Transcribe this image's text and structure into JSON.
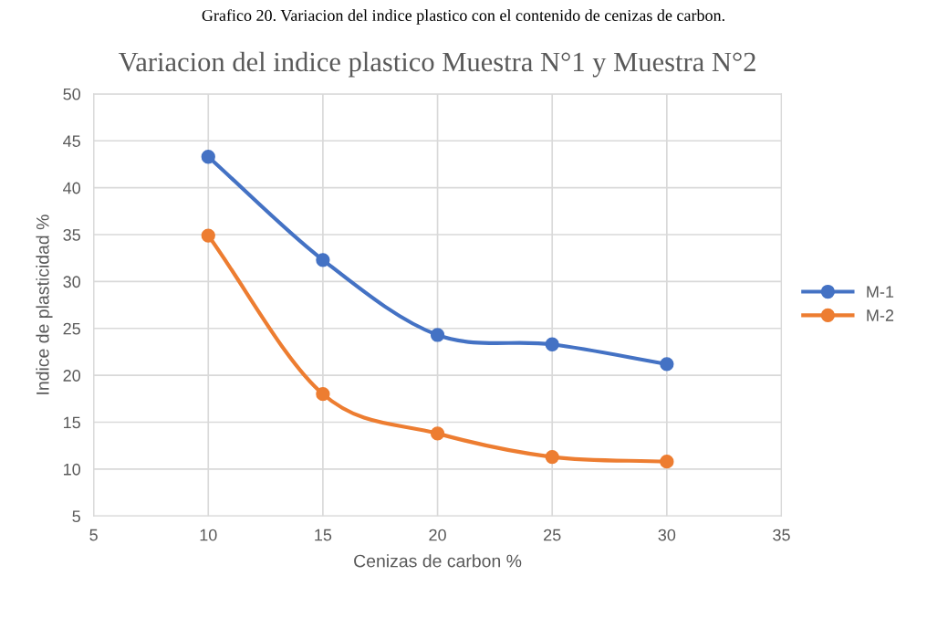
{
  "chart_data": {
    "type": "line",
    "title": "Variacion del indice plastico Muestra N°1 y Muestra N°2",
    "xlabel": "Cenizas de carbon %",
    "ylabel": "Indice de plasticidad %",
    "annotations": [
      "Grafico 20. Variacion del indice plastico con el contenido de cenizas de carbon."
    ],
    "x": [
      10,
      15,
      20,
      25,
      30
    ],
    "series": [
      {
        "name": "M-1",
        "color": "#4472c4",
        "values": [
          43.3,
          32.3,
          24.3,
          23.3,
          21.2
        ]
      },
      {
        "name": "M-2",
        "color": "#ed7d31",
        "values": [
          34.9,
          18.0,
          13.8,
          11.3,
          10.8
        ]
      }
    ],
    "xlim": [
      5,
      35
    ],
    "xticks": [
      5,
      10,
      15,
      20,
      25,
      30,
      35
    ],
    "ylim": [
      5,
      50
    ],
    "yticks": [
      5,
      10,
      15,
      20,
      25,
      30,
      35,
      40,
      45,
      50
    ],
    "grid": true,
    "legend": "right",
    "marker": "circle",
    "line_style": "solid"
  }
}
